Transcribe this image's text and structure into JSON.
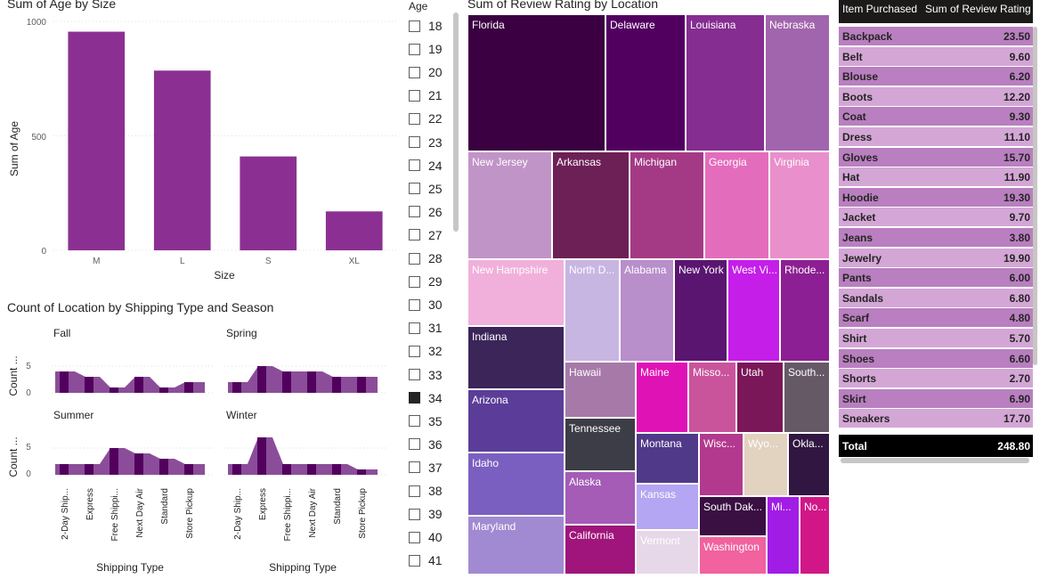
{
  "age_chart": {
    "title": "Sum of Age by Size",
    "ylabel": "Sum of Age",
    "xlabel": "Size",
    "yticks": [
      "1000",
      "500",
      "0"
    ]
  },
  "shipping_chart": {
    "title": "Count of Location by Shipping Type and Season",
    "ylabel": "Count ...",
    "xlabel": "Shipping Type",
    "yticks": [
      "5",
      "0"
    ],
    "categories": [
      "2-Day Ship...",
      "Express",
      "Free Shippi...",
      "Next Day Air",
      "Standard",
      "Store Pickup"
    ]
  },
  "age_slicer": {
    "title": "Age",
    "items": [
      {
        "label": "18",
        "checked": false
      },
      {
        "label": "19",
        "checked": false
      },
      {
        "label": "20",
        "checked": false
      },
      {
        "label": "21",
        "checked": false
      },
      {
        "label": "22",
        "checked": false
      },
      {
        "label": "23",
        "checked": false
      },
      {
        "label": "24",
        "checked": false
      },
      {
        "label": "25",
        "checked": false
      },
      {
        "label": "26",
        "checked": false
      },
      {
        "label": "27",
        "checked": false
      },
      {
        "label": "28",
        "checked": false
      },
      {
        "label": "29",
        "checked": false
      },
      {
        "label": "30",
        "checked": false
      },
      {
        "label": "31",
        "checked": false
      },
      {
        "label": "32",
        "checked": false
      },
      {
        "label": "33",
        "checked": false
      },
      {
        "label": "34",
        "checked": true
      },
      {
        "label": "35",
        "checked": false
      },
      {
        "label": "36",
        "checked": false
      },
      {
        "label": "37",
        "checked": false
      },
      {
        "label": "38",
        "checked": false
      },
      {
        "label": "39",
        "checked": false
      },
      {
        "label": "40",
        "checked": false
      },
      {
        "label": "41",
        "checked": false
      }
    ]
  },
  "treemap": {
    "title": "Sum of Review Rating by Location"
  },
  "table": {
    "headers": [
      "Item Purchased",
      "Sum of Review Rating"
    ],
    "rows": [
      [
        "Backpack",
        "23.50"
      ],
      [
        "Belt",
        "9.60"
      ],
      [
        "Blouse",
        "6.20"
      ],
      [
        "Boots",
        "12.20"
      ],
      [
        "Coat",
        "9.30"
      ],
      [
        "Dress",
        "11.10"
      ],
      [
        "Gloves",
        "15.70"
      ],
      [
        "Hat",
        "11.90"
      ],
      [
        "Hoodie",
        "19.30"
      ],
      [
        "Jacket",
        "9.70"
      ],
      [
        "Jeans",
        "3.80"
      ],
      [
        "Jewelry",
        "19.90"
      ],
      [
        "Pants",
        "6.00"
      ],
      [
        "Sandals",
        "6.80"
      ],
      [
        "Scarf",
        "4.80"
      ],
      [
        "Shirt",
        "5.70"
      ],
      [
        "Shoes",
        "6.60"
      ],
      [
        "Shorts",
        "2.70"
      ],
      [
        "Skirt",
        "6.90"
      ],
      [
        "Sneakers",
        "17.70"
      ]
    ],
    "total_label": "Total",
    "total_value": "248.80",
    "row_colors": [
      "#b97fc0",
      "#d3a6d6"
    ],
    "header_color": "#1b1a19"
  },
  "chart_data": [
    {
      "type": "bar",
      "title": "Sum of Age by Size",
      "xlabel": "Size",
      "ylabel": "Sum of Age",
      "categories": [
        "M",
        "L",
        "S",
        "XL"
      ],
      "values": [
        955,
        785,
        410,
        170
      ],
      "ylim": [
        0,
        1000
      ],
      "color": "#8b3092",
      "grid": true
    },
    {
      "type": "area",
      "title": "Count of Location by Shipping Type and Season",
      "xlabel": "Shipping Type",
      "ylabel": "Count ...",
      "categories": [
        "2-Day Ship...",
        "Express",
        "Free Shippi...",
        "Next Day Air",
        "Standard",
        "Store Pickup"
      ],
      "ylim": [
        0,
        7
      ],
      "series": [
        {
          "name": "Fall",
          "values": [
            4,
            3,
            1,
            3,
            1,
            2
          ]
        },
        {
          "name": "Spring",
          "values": [
            2,
            5,
            4,
            4,
            3,
            3
          ]
        },
        {
          "name": "Summer",
          "values": [
            2,
            2,
            5,
            4,
            3,
            2
          ]
        },
        {
          "name": "Winter",
          "values": [
            2,
            7,
            2,
            2,
            2,
            1
          ]
        }
      ],
      "colors": [
        "#52005e",
        "#8b4d99"
      ]
    },
    {
      "type": "treemap",
      "title": "Sum of Review Rating by Location",
      "items": [
        {
          "label": "Florida",
          "color": "#3a0041"
        },
        {
          "label": "Delaware",
          "color": "#520060"
        },
        {
          "label": "Louisiana",
          "color": "#852d91"
        },
        {
          "label": "Nebraska",
          "color": "#a165ad"
        },
        {
          "label": "New Jersey",
          "color": "#c194c7"
        },
        {
          "label": "Arkansas",
          "color": "#6d2055"
        },
        {
          "label": "Michigan",
          "color": "#a43a85"
        },
        {
          "label": "Georgia",
          "color": "#e46cbc"
        },
        {
          "label": "Virginia",
          "color": "#e98fcb"
        },
        {
          "label": "New Hampshire",
          "color": "#f0b0db"
        },
        {
          "label": "North D...",
          "color": "#c8b6e2"
        },
        {
          "label": "Alabama",
          "color": "#b88ecb"
        },
        {
          "label": "New York",
          "color": "#5a1570"
        },
        {
          "label": "West Vi...",
          "color": "#c51ee9"
        },
        {
          "label": "Rhode...",
          "color": "#8c1f93"
        },
        {
          "label": "Indiana",
          "color": "#3b2559"
        },
        {
          "label": "Hawaii",
          "color": "#a679a9"
        },
        {
          "label": "Maine",
          "color": "#df13b5"
        },
        {
          "label": "Misso...",
          "color": "#c9549c"
        },
        {
          "label": "Utah",
          "color": "#7a1758"
        },
        {
          "label": "South...",
          "color": "#665966"
        },
        {
          "label": "Arizona",
          "color": "#5b3d99"
        },
        {
          "label": "Tennessee",
          "color": "#3d3d47"
        },
        {
          "label": "Montana",
          "color": "#503988"
        },
        {
          "label": "Wisc...",
          "color": "#b2398e"
        },
        {
          "label": "Wyo...",
          "color": "#e2d2c0"
        },
        {
          "label": "Okla...",
          "color": "#301640"
        },
        {
          "label": "Idaho",
          "color": "#7a5fc0"
        },
        {
          "label": "Alaska",
          "color": "#a45cb6"
        },
        {
          "label": "Kansas",
          "color": "#b4a6f2"
        },
        {
          "label": "South Dak...",
          "color": "#3a0f42"
        },
        {
          "label": "Mi...",
          "color": "#a11de6"
        },
        {
          "label": "No...",
          "color": "#d11787"
        },
        {
          "label": "Maryland",
          "color": "#a18ad2"
        },
        {
          "label": "California",
          "color": "#a0157b"
        },
        {
          "label": "Vermont",
          "color": "#e6d8e8"
        },
        {
          "label": "Washington",
          "color": "#f1629f"
        }
      ]
    }
  ]
}
